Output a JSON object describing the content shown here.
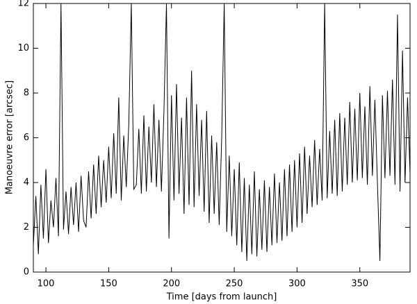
{
  "chart_data": {
    "type": "line",
    "x_label": "Time [days from launch]",
    "y_label": "Manoeuvre error [arcsec]",
    "color": "#000000",
    "xlim": [
      90,
      390
    ],
    "xticks": [
      100,
      150,
      200,
      250,
      300,
      350
    ],
    "ylim": [
      0,
      12
    ],
    "yticks": [
      0,
      2,
      4,
      6,
      8,
      10,
      12
    ],
    "x": [
      90,
      92,
      94,
      96,
      98,
      100,
      102,
      104,
      106,
      108,
      110,
      112,
      114,
      116,
      118,
      120,
      122,
      124,
      126,
      128,
      130,
      132,
      134,
      136,
      138,
      140,
      142,
      144,
      146,
      148,
      150,
      152,
      154,
      156,
      158,
      160,
      162,
      164,
      166,
      168,
      170,
      172,
      174,
      176,
      178,
      180,
      182,
      184,
      186,
      188,
      190,
      192,
      194,
      196,
      198,
      200,
      202,
      204,
      206,
      208,
      210,
      212,
      214,
      216,
      218,
      220,
      222,
      224,
      226,
      228,
      230,
      232,
      234,
      236,
      238,
      240,
      242,
      244,
      246,
      248,
      250,
      252,
      254,
      256,
      258,
      260,
      262,
      264,
      266,
      268,
      270,
      272,
      274,
      276,
      278,
      280,
      282,
      284,
      286,
      288,
      290,
      292,
      294,
      296,
      298,
      300,
      302,
      304,
      306,
      308,
      310,
      312,
      314,
      316,
      318,
      320,
      322,
      324,
      326,
      328,
      330,
      332,
      334,
      336,
      338,
      340,
      342,
      344,
      346,
      348,
      350,
      352,
      354,
      356,
      358,
      360,
      362,
      364,
      366,
      368,
      370,
      372,
      374,
      376,
      378,
      380,
      382,
      384,
      386,
      388,
      390
    ],
    "values": [
      1.2,
      3.4,
      0.8,
      3.9,
      1.5,
      4.6,
      1.3,
      3.2,
      2.0,
      4.2,
      1.6,
      12,
      1.9,
      3.6,
      1.7,
      3.8,
      2.1,
      4.0,
      1.8,
      4.3,
      2.3,
      2.0,
      4.5,
      2.4,
      4.8,
      2.6,
      5.2,
      2.9,
      5.0,
      3.1,
      5.6,
      3.3,
      6.2,
      3.5,
      7.8,
      3.2,
      6.1,
      3.8,
      6.6,
      12,
      3.7,
      3.9,
      6.4,
      3.5,
      7.0,
      3.6,
      6.5,
      4.0,
      7.5,
      3.8,
      6.8,
      3.6,
      7.2,
      12,
      1.5,
      7.9,
      3.2,
      8.4,
      3.5,
      6.9,
      2.6,
      7.8,
      3.0,
      9.0,
      2.9,
      7.5,
      3.4,
      6.8,
      2.7,
      7.2,
      2.2,
      6.1,
      2.6,
      5.8,
      2.1,
      6.0,
      12,
      1.8,
      5.2,
      1.6,
      4.6,
      1.2,
      4.9,
      0.9,
      4.2,
      0.5,
      3.9,
      0.8,
      4.5,
      0.7,
      3.7,
      1.0,
      4.1,
      0.9,
      3.8,
      1.2,
      4.4,
      1.3,
      4.0,
      1.4,
      4.6,
      1.6,
      4.8,
      1.8,
      5.0,
      2.0,
      5.3,
      2.2,
      5.6,
      2.6,
      5.2,
      2.9,
      5.9,
      3.0,
      5.5,
      3.2,
      12,
      3.3,
      6.3,
      3.5,
      6.8,
      3.4,
      7.1,
      3.6,
      6.9,
      3.9,
      7.6,
      4.0,
      7.3,
      4.1,
      8.0,
      4.2,
      7.4,
      3.9,
      8.3,
      4.3,
      7.7,
      4.0,
      0.5,
      7.9,
      4.2,
      8.1,
      4.3,
      8.6,
      3.9,
      11.5,
      3.6,
      9.9,
      4.0,
      7.8,
      4.4
    ]
  }
}
